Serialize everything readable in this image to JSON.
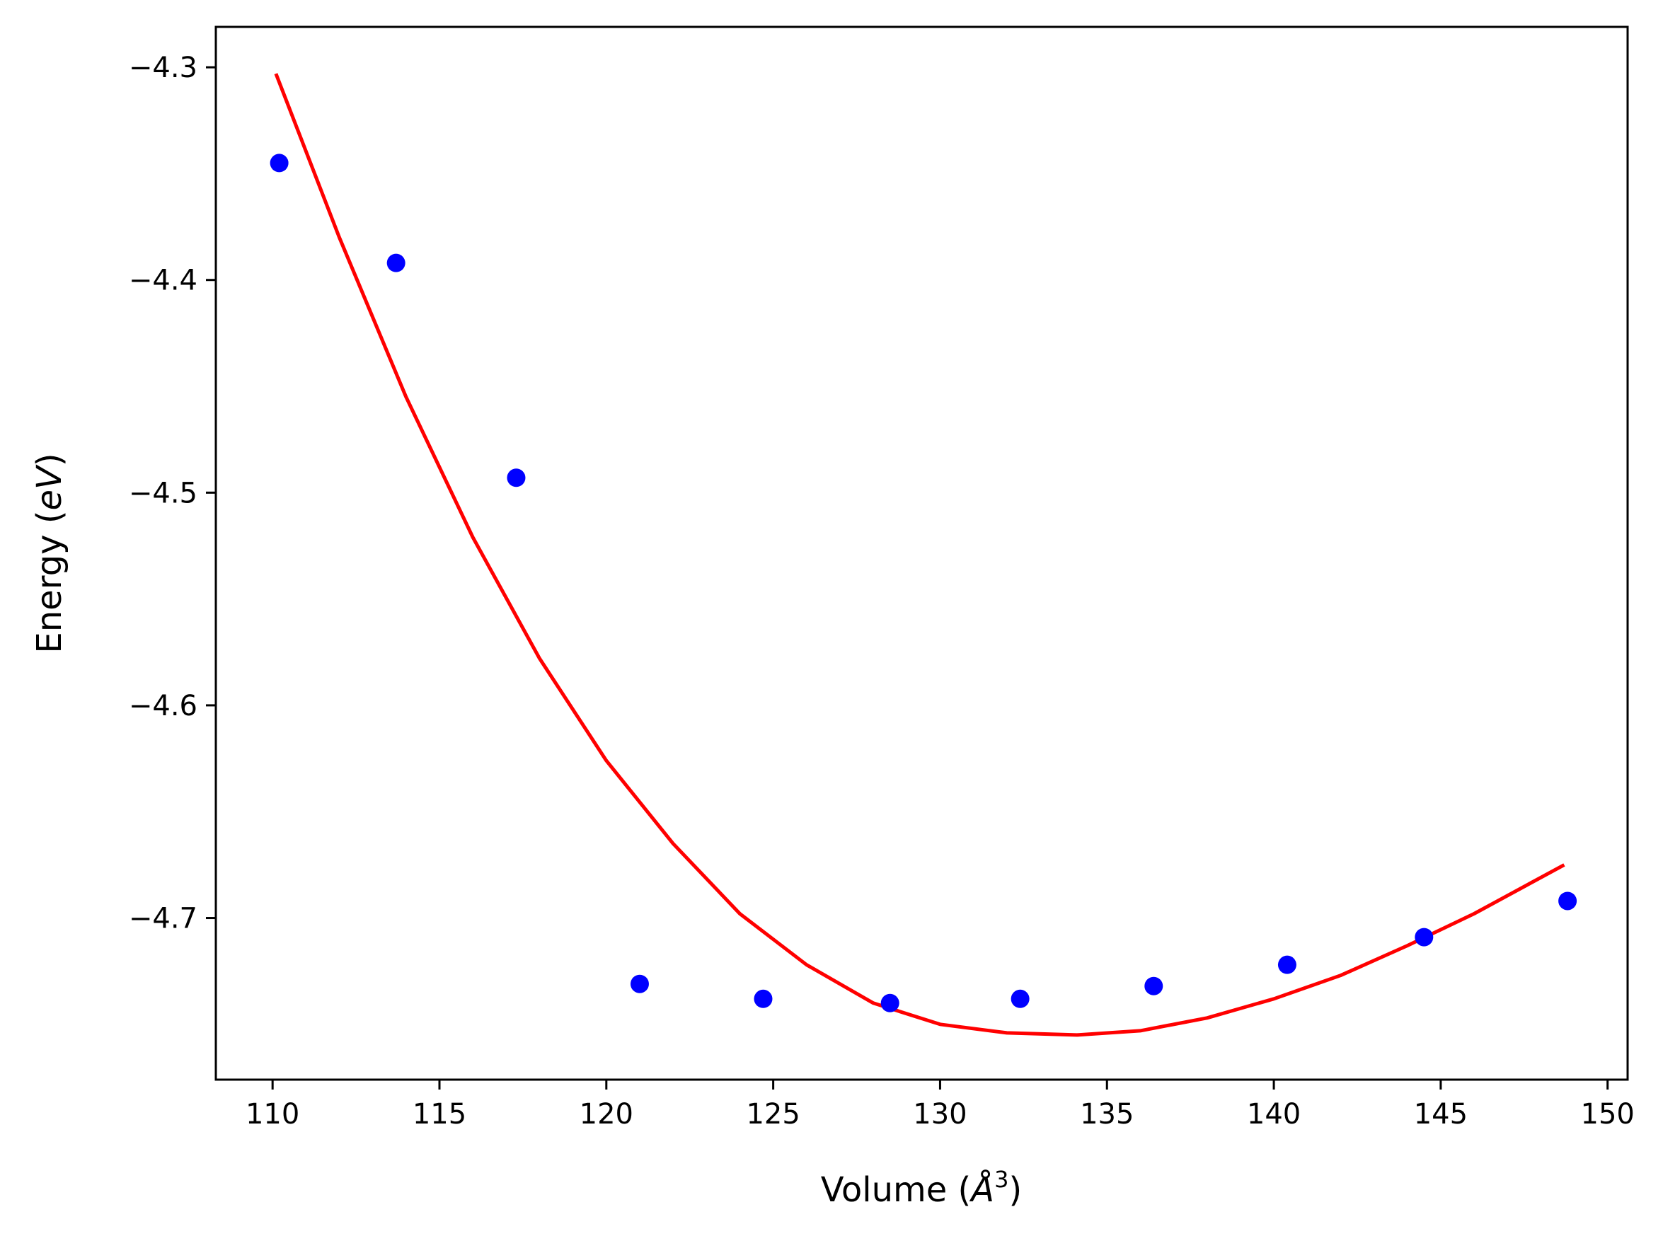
{
  "chart_data": {
    "type": "scatter",
    "title": "",
    "xlabel_prefix": "Volume (",
    "xlabel_symbol": "Å",
    "xlabel_power": "3",
    "xlabel_suffix": ")",
    "ylabel_prefix": "Energy (",
    "ylabel_unit": "eV",
    "ylabel_suffix": ")",
    "xlim": [
      108.3,
      150.6
    ],
    "ylim": [
      -4.776,
      -4.281
    ],
    "xticks": [
      110,
      115,
      120,
      125,
      130,
      135,
      140,
      145,
      150
    ],
    "yticks": [
      -4.3,
      -4.4,
      -4.5,
      -4.6,
      -4.7
    ],
    "xtick_labels": [
      "110",
      "115",
      "120",
      "125",
      "130",
      "135",
      "140",
      "145",
      "150"
    ],
    "ytick_labels": [
      "−4.3",
      "−4.4",
      "−4.5",
      "−4.6",
      "−4.7"
    ],
    "grid": false,
    "series": [
      {
        "kind": "points",
        "color": "#0000ff",
        "x": [
          110.2,
          113.7,
          117.3,
          121.0,
          124.7,
          128.5,
          132.4,
          136.4,
          140.4,
          144.5,
          148.8
        ],
        "y": [
          -4.345,
          -4.392,
          -4.493,
          -4.731,
          -4.738,
          -4.74,
          -4.738,
          -4.732,
          -4.722,
          -4.709,
          -4.692
        ]
      },
      {
        "kind": "fit-line",
        "color": "#ff0000",
        "x": [
          110.1,
          112.0,
          114.0,
          116.0,
          118.0,
          120.0,
          122.0,
          124.0,
          126.0,
          128.0,
          130.0,
          132.0,
          134.1,
          136.0,
          138.0,
          140.0,
          142.0,
          144.0,
          146.0,
          148.7
        ],
        "y": [
          -4.303,
          -4.38,
          -4.455,
          -4.521,
          -4.578,
          -4.626,
          -4.665,
          -4.698,
          -4.722,
          -4.74,
          -4.75,
          -4.754,
          -4.755,
          -4.753,
          -4.747,
          -4.738,
          -4.727,
          -4.713,
          -4.698,
          -4.675
        ]
      }
    ]
  }
}
